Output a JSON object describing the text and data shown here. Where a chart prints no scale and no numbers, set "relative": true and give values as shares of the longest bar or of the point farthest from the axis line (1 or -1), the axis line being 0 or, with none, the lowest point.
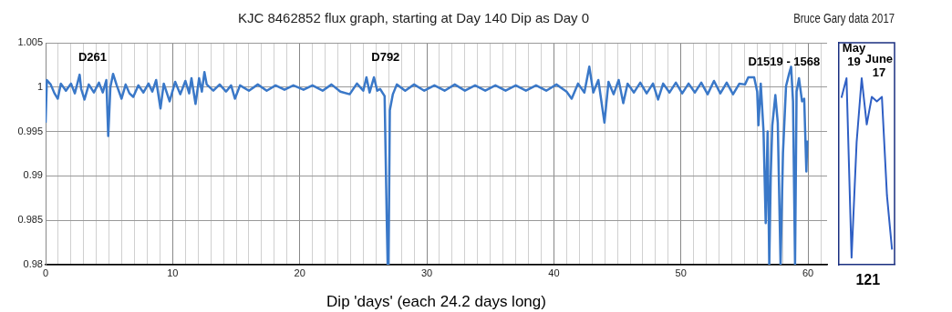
{
  "chart_data": [
    {
      "type": "line",
      "title": "KJC 8462852 flux graph, starting at Day 140 Dip as Day 0",
      "xlabel": "Dip 'days' (each 24.2 days long)",
      "xlim": [
        0,
        61.5
      ],
      "ylim": [
        0.98,
        1.005
      ],
      "yticks": [
        0.98,
        0.985,
        0.99,
        0.995,
        1,
        1.005
      ],
      "grid": true,
      "xticks": [
        0,
        {
          "value": 1,
          "label": null
        },
        {
          "value": 2,
          "label": null
        },
        {
          "value": 3,
          "label": null
        },
        {
          "value": 4,
          "label": null
        },
        {
          "value": 5,
          "label": null
        },
        {
          "value": 6,
          "label": null
        },
        {
          "value": 7,
          "label": null
        },
        {
          "value": 8,
          "label": null
        },
        {
          "value": 9,
          "label": null
        },
        10,
        {
          "value": 11,
          "label": null
        },
        {
          "value": 12,
          "label": null
        },
        {
          "value": 13,
          "label": null
        },
        {
          "value": 14,
          "label": null
        },
        {
          "value": 15,
          "label": null
        },
        {
          "value": 16,
          "label": null
        },
        {
          "value": 17,
          "label": null
        },
        {
          "value": 18,
          "label": null
        },
        {
          "value": 19,
          "label": null
        },
        20,
        {
          "value": 21,
          "label": null
        },
        {
          "value": 22,
          "label": null
        },
        {
          "value": 23,
          "label": null
        },
        {
          "value": 24,
          "label": null
        },
        {
          "value": 25,
          "label": null
        },
        {
          "value": 26,
          "label": null
        },
        {
          "value": 27,
          "label": null
        },
        {
          "value": 28,
          "label": null
        },
        {
          "value": 29,
          "label": null
        },
        30,
        {
          "value": 31,
          "label": null
        },
        {
          "value": 32,
          "label": null
        },
        {
          "value": 33,
          "label": null
        },
        {
          "value": 34,
          "label": null
        },
        {
          "value": 35,
          "label": null
        },
        {
          "value": 36,
          "label": null
        },
        {
          "value": 37,
          "label": null
        },
        {
          "value": 38,
          "label": null
        },
        {
          "value": 39,
          "label": null
        },
        40,
        {
          "value": 41,
          "label": null
        },
        {
          "value": 42,
          "label": null
        },
        {
          "value": 43,
          "label": null
        },
        {
          "value": 44,
          "label": null
        },
        {
          "value": 45,
          "label": null
        },
        {
          "value": 46,
          "label": null
        },
        {
          "value": 47,
          "label": null
        },
        {
          "value": 48,
          "label": null
        },
        {
          "value": 49,
          "label": null
        },
        50,
        {
          "value": 51,
          "label": null
        },
        {
          "value": 52,
          "label": null
        },
        {
          "value": 53,
          "label": null
        },
        {
          "value": 54,
          "label": null
        },
        {
          "value": 55,
          "label": null
        },
        {
          "value": 56,
          "label": null
        },
        {
          "value": 57,
          "label": null
        },
        {
          "value": 58,
          "label": null
        },
        {
          "value": 59,
          "label": null
        },
        60,
        {
          "value": 61,
          "label": null
        }
      ],
      "series": [
        {
          "color": "#3a78c8",
          "x": [
            0,
            0.1,
            0.4,
            0.7,
            0.96,
            1.2,
            1.6,
            2.0,
            2.3,
            2.68,
            2.8,
            3.06,
            3.4,
            3.8,
            4.2,
            4.5,
            4.78,
            4.93,
            5.1,
            5.31,
            5.6,
            5.98,
            6.3,
            6.6,
            6.9,
            7.3,
            7.7,
            8.1,
            8.4,
            8.7,
            9.04,
            9.3,
            9.76,
            10.2,
            10.6,
            11.0,
            11.3,
            11.48,
            11.8,
            12.08,
            12.3,
            12.5,
            12.68,
            13.2,
            13.7,
            14.2,
            14.6,
            14.9,
            15.3,
            16,
            16.7,
            17.4,
            18.1,
            18.8,
            19.5,
            20.3,
            21.0,
            21.8,
            22.5,
            23.2,
            23.93,
            24.5,
            25.0,
            25.25,
            25.5,
            25.84,
            26.1,
            26.32,
            26.68,
            26.85,
            26.92,
            26.99,
            27.09,
            27.33,
            27.64,
            28.3,
            29,
            29.8,
            30.6,
            31.4,
            32.2,
            33,
            33.8,
            34.6,
            35.4,
            36.2,
            37,
            37.8,
            38.6,
            39.4,
            40.2,
            41.0,
            41.4,
            41.9,
            42.4,
            42.79,
            43.1,
            43.5,
            43.98,
            44.3,
            44.7,
            45.1,
            45.46,
            45.8,
            46.3,
            46.8,
            47.3,
            47.8,
            48.2,
            48.6,
            49.1,
            49.6,
            50.1,
            50.6,
            51.1,
            51.6,
            52.1,
            52.6,
            53.1,
            53.6,
            54.1,
            54.6,
            55.04,
            55.3,
            55.76,
            56.0,
            56.1,
            56.28,
            56.5,
            56.67,
            56.82,
            56.95,
            57.07,
            57.19,
            57.43,
            57.62,
            57.84,
            58.03,
            58.27,
            58.51,
            58.67,
            58.82,
            58.98,
            59.1,
            59.29,
            59.53,
            59.7,
            59.87,
            59.94
          ],
          "values": [
            0.996,
            1.0008,
            1.0003,
            0.9993,
            0.9987,
            1.0004,
            0.9996,
            1.0004,
            0.9993,
            1.0014,
            0.9998,
            0.9986,
            1.0003,
            0.9994,
            1.0005,
            0.9994,
            1.0008,
            0.9945,
            1.0,
            1.0015,
            1.0002,
            0.9987,
            1.0003,
            0.9993,
            0.9989,
            1.0002,
            0.9994,
            1.0004,
            0.9995,
            1.0008,
            0.9976,
            1.0004,
            0.9984,
            1.0006,
            0.9992,
            1.0007,
            0.9993,
            1.001,
            0.9981,
            1.001,
            0.9995,
            1.0017,
            1.0003,
            0.9996,
            1.0003,
            0.9995,
            1.0002,
            0.9987,
            1.0002,
            0.9996,
            1.0003,
            0.9996,
            1.0002,
            0.9997,
            1.0002,
            0.9997,
            1.0002,
            0.9996,
            1.0003,
            0.9995,
            0.9992,
            1.0004,
            0.9996,
            1.0011,
            0.9994,
            1.0011,
            0.9996,
            0.9998,
            0.999,
            0.985,
            0.98,
            0.98,
            0.9974,
            0.9992,
            1.0003,
            0.9996,
            1.0003,
            0.9996,
            1.0002,
            0.9996,
            1.0003,
            0.9996,
            1.0002,
            0.9996,
            1.0002,
            0.9996,
            1.0002,
            0.9996,
            1.0002,
            0.9996,
            1.0003,
            0.9995,
            0.9987,
            1.0004,
            0.9994,
            1.0023,
            0.9994,
            1.0008,
            0.996,
            1.0006,
            0.9992,
            1.0008,
            0.9982,
            1.0004,
            0.9994,
            1.0005,
            0.9993,
            1.0004,
            0.9986,
            1.0004,
            0.9994,
            1.0005,
            0.9993,
            1.0004,
            0.9994,
            1.0005,
            0.9992,
            1.0007,
            0.9993,
            1.0005,
            0.9992,
            1.0004,
            1.0003,
            1.0011,
            1.0011,
            0.9995,
            0.9957,
            1.0004,
            0.995,
            0.9847,
            0.995,
            0.98,
            0.9902,
            0.9957,
            0.9991,
            0.996,
            0.98,
            0.9926,
            1.0001,
            1.0015,
            1.0023,
            0.9984,
            0.98,
            0.9995,
            1.001,
            0.9984,
            0.9987,
            0.9905,
            0.994
          ]
        }
      ],
      "annotations": [
        "D261",
        "D792",
        "D1519 - 1568"
      ]
    },
    {
      "type": "line",
      "title": "Bruce Gary data 2017",
      "categories": [
        null,
        null,
        null,
        null,
        null,
        null,
        null,
        null,
        null,
        null,
        null
      ],
      "relative": true,
      "series": [
        {
          "color": "#2f5fc4",
          "values": [
            0.895,
            1,
            0.038,
            0.657,
            1,
            0.752,
            0.9,
            0.876,
            0.9,
            0.371,
            0.081
          ]
        }
      ],
      "annotations": [
        "May 19",
        "June 17",
        "121"
      ]
    }
  ]
}
